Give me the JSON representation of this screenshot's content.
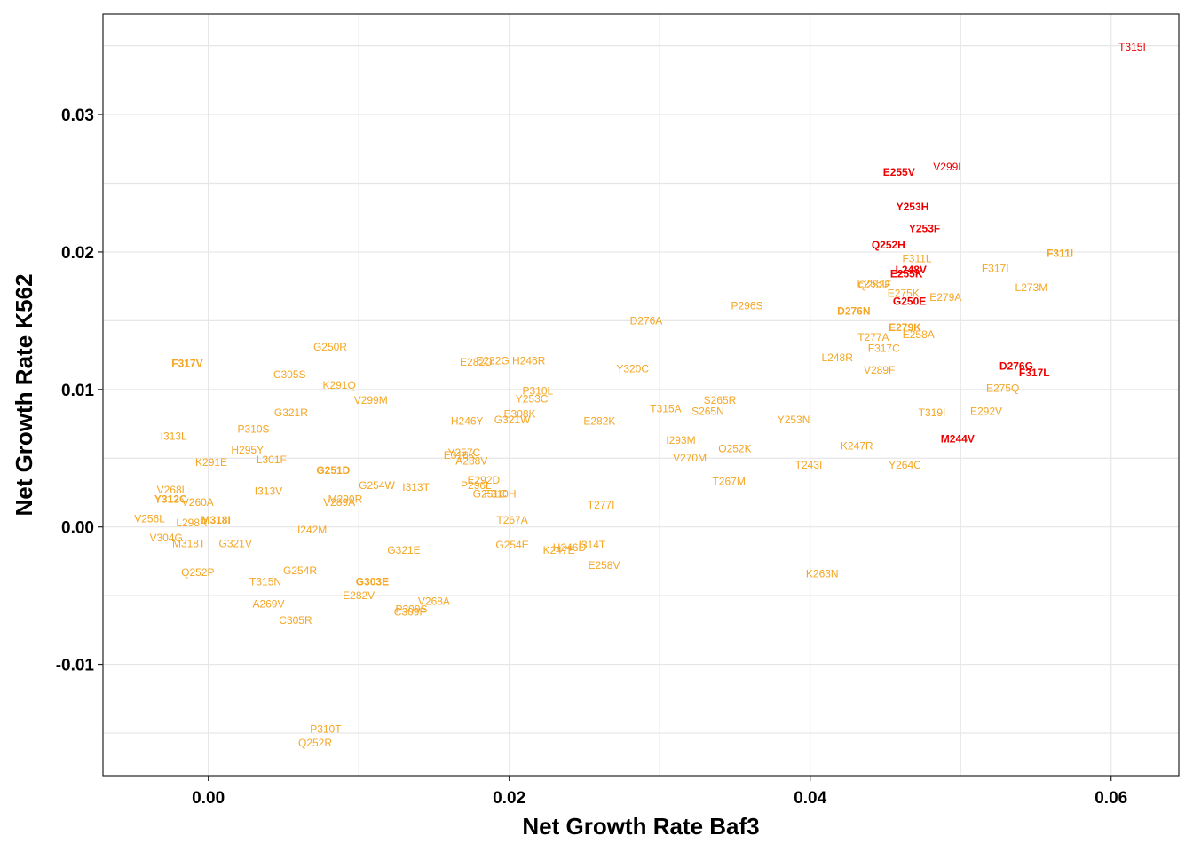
{
  "chart_data": {
    "type": "scatter",
    "xlabel": "Net Growth Rate Baf3",
    "ylabel": "Net Growth Rate K562",
    "xlim": [
      -0.007,
      0.0645
    ],
    "ylim": [
      -0.0181,
      0.0373
    ],
    "x_ticks": [
      0.0,
      0.02,
      0.04,
      0.06
    ],
    "x_tick_labels": [
      "0.00",
      "0.02",
      "0.04",
      "0.06"
    ],
    "y_ticks": [
      -0.01,
      0.0,
      0.01,
      0.02,
      0.03
    ],
    "y_tick_labels": [
      "-0.01",
      "0.00",
      "0.01",
      "0.02",
      "0.03"
    ],
    "grid": true,
    "colors": {
      "resistant": "#ee0000",
      "other": "#f5a623"
    },
    "points": [
      {
        "label": "T315I",
        "x": 0.0614,
        "y": 0.0349,
        "group": "resistant"
      },
      {
        "label": "V299L",
        "x": 0.0492,
        "y": 0.0262,
        "group": "resistant"
      },
      {
        "label": "E255V",
        "x": 0.0459,
        "y": 0.0258,
        "group": "resistant",
        "bold": true
      },
      {
        "label": "Y253H",
        "x": 0.0468,
        "y": 0.0233,
        "group": "resistant",
        "bold": true
      },
      {
        "label": "Y253F",
        "x": 0.0476,
        "y": 0.0217,
        "group": "resistant",
        "bold": true
      },
      {
        "label": "Q252H",
        "x": 0.0452,
        "y": 0.0205,
        "group": "resistant",
        "bold": true
      },
      {
        "label": "F311L",
        "x": 0.0471,
        "y": 0.0195,
        "group": "other"
      },
      {
        "label": "L248V",
        "x": 0.0467,
        "y": 0.0187,
        "group": "resistant",
        "bold": true
      },
      {
        "label": "E255K",
        "x": 0.0464,
        "y": 0.0184,
        "group": "resistant",
        "bold": true
      },
      {
        "label": "G250E",
        "x": 0.0466,
        "y": 0.0164,
        "group": "resistant",
        "bold": true
      },
      {
        "label": "D276G",
        "x": 0.0537,
        "y": 0.0117,
        "group": "resistant",
        "bold": true
      },
      {
        "label": "F317L",
        "x": 0.0549,
        "y": 0.0112,
        "group": "resistant",
        "bold": true
      },
      {
        "label": "M244V",
        "x": 0.0498,
        "y": 0.0064,
        "group": "resistant",
        "bold": true
      },
      {
        "label": "F311I",
        "x": 0.0566,
        "y": 0.0199,
        "group": "other",
        "bold": true
      },
      {
        "label": "F317I",
        "x": 0.0523,
        "y": 0.0188,
        "group": "other"
      },
      {
        "label": "L273M",
        "x": 0.0547,
        "y": 0.0174,
        "group": "other"
      },
      {
        "label": "E255D",
        "x": 0.0442,
        "y": 0.0177,
        "group": "other"
      },
      {
        "label": "Q252E",
        "x": 0.0443,
        "y": 0.0176,
        "group": "other"
      },
      {
        "label": "E275K",
        "x": 0.0462,
        "y": 0.017,
        "group": "other"
      },
      {
        "label": "E279A",
        "x": 0.049,
        "y": 0.0167,
        "group": "other"
      },
      {
        "label": "D276N",
        "x": 0.0429,
        "y": 0.0157,
        "group": "other",
        "bold": true
      },
      {
        "label": "E279K",
        "x": 0.0463,
        "y": 0.0145,
        "group": "other",
        "bold": true
      },
      {
        "label": "T277A",
        "x": 0.0442,
        "y": 0.0138,
        "group": "other"
      },
      {
        "label": "E258A",
        "x": 0.0472,
        "y": 0.014,
        "group": "other"
      },
      {
        "label": "F317C",
        "x": 0.0449,
        "y": 0.013,
        "group": "other"
      },
      {
        "label": "L248R",
        "x": 0.0418,
        "y": 0.0123,
        "group": "other"
      },
      {
        "label": "V289F",
        "x": 0.0446,
        "y": 0.0114,
        "group": "other"
      },
      {
        "label": "E275Q",
        "x": 0.0528,
        "y": 0.0101,
        "group": "other"
      },
      {
        "label": "T319I",
        "x": 0.0481,
        "y": 0.0083,
        "group": "other"
      },
      {
        "label": "E292V",
        "x": 0.0517,
        "y": 0.0084,
        "group": "other"
      },
      {
        "label": "K247R",
        "x": 0.0431,
        "y": 0.0059,
        "group": "other"
      },
      {
        "label": "Y264C",
        "x": 0.0463,
        "y": 0.0045,
        "group": "other"
      },
      {
        "label": "P296S",
        "x": 0.0358,
        "y": 0.0161,
        "group": "other"
      },
      {
        "label": "D276A",
        "x": 0.0291,
        "y": 0.015,
        "group": "other"
      },
      {
        "label": "Y320C",
        "x": 0.0282,
        "y": 0.0115,
        "group": "other"
      },
      {
        "label": "S265R",
        "x": 0.034,
        "y": 0.0092,
        "group": "other"
      },
      {
        "label": "T315A",
        "x": 0.0304,
        "y": 0.0086,
        "group": "other"
      },
      {
        "label": "S265N",
        "x": 0.0332,
        "y": 0.0084,
        "group": "other"
      },
      {
        "label": "Y253N",
        "x": 0.0389,
        "y": 0.0078,
        "group": "other"
      },
      {
        "label": "I293M",
        "x": 0.0314,
        "y": 0.0063,
        "group": "other"
      },
      {
        "label": "Q252K",
        "x": 0.035,
        "y": 0.0057,
        "group": "other"
      },
      {
        "label": "V270M",
        "x": 0.032,
        "y": 0.005,
        "group": "other"
      },
      {
        "label": "T243I",
        "x": 0.0399,
        "y": 0.0045,
        "group": "other"
      },
      {
        "label": "T267M",
        "x": 0.0346,
        "y": 0.0033,
        "group": "other"
      },
      {
        "label": "K263N",
        "x": 0.0408,
        "y": -0.0034,
        "group": "other"
      },
      {
        "label": "H246R",
        "x": 0.0213,
        "y": 0.0121,
        "group": "other"
      },
      {
        "label": "E282G",
        "x": 0.0189,
        "y": 0.0121,
        "group": "other"
      },
      {
        "label": "E282D",
        "x": 0.0178,
        "y": 0.012,
        "group": "other"
      },
      {
        "label": "P310L",
        "x": 0.0219,
        "y": 0.0099,
        "group": "other"
      },
      {
        "label": "Y253C",
        "x": 0.0215,
        "y": 0.0093,
        "group": "other"
      },
      {
        "label": "E308K",
        "x": 0.0207,
        "y": 0.0082,
        "group": "other"
      },
      {
        "label": "G321W",
        "x": 0.0202,
        "y": 0.0078,
        "group": "other"
      },
      {
        "label": "H246Y",
        "x": 0.0172,
        "y": 0.0077,
        "group": "other"
      },
      {
        "label": "E282K",
        "x": 0.026,
        "y": 0.0077,
        "group": "other"
      },
      {
        "label": "Y257C",
        "x": 0.017,
        "y": 0.0054,
        "group": "other"
      },
      {
        "label": "E316K",
        "x": 0.0167,
        "y": 0.0052,
        "group": "other"
      },
      {
        "label": "A288V",
        "x": 0.0175,
        "y": 0.0048,
        "group": "other"
      },
      {
        "label": "E292D",
        "x": 0.0183,
        "y": 0.0034,
        "group": "other"
      },
      {
        "label": "P296L",
        "x": 0.0178,
        "y": 0.003,
        "group": "other"
      },
      {
        "label": "G251C",
        "x": 0.0187,
        "y": 0.0024,
        "group": "other"
      },
      {
        "label": "F310H",
        "x": 0.0194,
        "y": 0.0024,
        "group": "other"
      },
      {
        "label": "T277I",
        "x": 0.0261,
        "y": 0.0016,
        "group": "other"
      },
      {
        "label": "T267A",
        "x": 0.0202,
        "y": 0.0005,
        "group": "other"
      },
      {
        "label": "G254E",
        "x": 0.0202,
        "y": -0.0013,
        "group": "other"
      },
      {
        "label": "I314T",
        "x": 0.0255,
        "y": -0.0013,
        "group": "other"
      },
      {
        "label": "H246D",
        "x": 0.024,
        "y": -0.0015,
        "group": "other"
      },
      {
        "label": "K247E",
        "x": 0.0233,
        "y": -0.0017,
        "group": "other"
      },
      {
        "label": "E258V",
        "x": 0.0263,
        "y": -0.0028,
        "group": "other"
      },
      {
        "label": "G250R",
        "x": 0.0081,
        "y": 0.0131,
        "group": "other"
      },
      {
        "label": "F317V",
        "x": -0.0014,
        "y": 0.0119,
        "group": "other",
        "bold": true
      },
      {
        "label": "C305S",
        "x": 0.0054,
        "y": 0.0111,
        "group": "other"
      },
      {
        "label": "K291Q",
        "x": 0.0087,
        "y": 0.0103,
        "group": "other"
      },
      {
        "label": "V299M",
        "x": 0.0108,
        "y": 0.0092,
        "group": "other"
      },
      {
        "label": "G321R",
        "x": 0.0055,
        "y": 0.0083,
        "group": "other"
      },
      {
        "label": "P310S",
        "x": 0.003,
        "y": 0.0071,
        "group": "other"
      },
      {
        "label": "I313L",
        "x": -0.0023,
        "y": 0.0066,
        "group": "other"
      },
      {
        "label": "H295Y",
        "x": 0.0026,
        "y": 0.0056,
        "group": "other"
      },
      {
        "label": "K291E",
        "x": 0.0002,
        "y": 0.0047,
        "group": "other"
      },
      {
        "label": "L301F",
        "x": 0.0042,
        "y": 0.0049,
        "group": "other"
      },
      {
        "label": "G251D",
        "x": 0.0083,
        "y": 0.0041,
        "group": "other",
        "bold": true
      },
      {
        "label": "G254W",
        "x": 0.0112,
        "y": 0.003,
        "group": "other"
      },
      {
        "label": "I313T",
        "x": 0.0138,
        "y": 0.0029,
        "group": "other"
      },
      {
        "label": "I313V",
        "x": 0.004,
        "y": 0.0026,
        "group": "other"
      },
      {
        "label": "V268L",
        "x": -0.0024,
        "y": 0.0027,
        "group": "other"
      },
      {
        "label": "Y312C",
        "x": -0.0025,
        "y": 0.002,
        "group": "other",
        "bold": true
      },
      {
        "label": "V260A",
        "x": -0.0007,
        "y": 0.0018,
        "group": "other"
      },
      {
        "label": "M290R",
        "x": 0.0091,
        "y": 0.002,
        "group": "other"
      },
      {
        "label": "V289A",
        "x": 0.0087,
        "y": 0.0018,
        "group": "other"
      },
      {
        "label": "V256L",
        "x": -0.0039,
        "y": 0.0006,
        "group": "other"
      },
      {
        "label": "L298R",
        "x": -0.0011,
        "y": 0.0003,
        "group": "other"
      },
      {
        "label": "M318I",
        "x": 0.0005,
        "y": 0.0005,
        "group": "other",
        "bold": true
      },
      {
        "label": "I242M",
        "x": 0.0069,
        "y": -0.0002,
        "group": "other"
      },
      {
        "label": "V304G",
        "x": -0.0028,
        "y": -0.0008,
        "group": "other"
      },
      {
        "label": "M318T",
        "x": -0.0013,
        "y": -0.0012,
        "group": "other"
      },
      {
        "label": "G321V",
        "x": 0.0018,
        "y": -0.0012,
        "group": "other"
      },
      {
        "label": "G321E",
        "x": 0.013,
        "y": -0.0017,
        "group": "other"
      },
      {
        "label": "Q252P",
        "x": -0.0007,
        "y": -0.0033,
        "group": "other"
      },
      {
        "label": "G254R",
        "x": 0.0061,
        "y": -0.0032,
        "group": "other"
      },
      {
        "label": "T315N",
        "x": 0.0038,
        "y": -0.004,
        "group": "other"
      },
      {
        "label": "G303E",
        "x": 0.0109,
        "y": -0.004,
        "group": "other",
        "bold": true
      },
      {
        "label": "E282V",
        "x": 0.01,
        "y": -0.005,
        "group": "other"
      },
      {
        "label": "V268A",
        "x": 0.015,
        "y": -0.0054,
        "group": "other"
      },
      {
        "label": "A269V",
        "x": 0.004,
        "y": -0.0056,
        "group": "other"
      },
      {
        "label": "P309S",
        "x": 0.0135,
        "y": -0.006,
        "group": "other"
      },
      {
        "label": "C309F",
        "x": 0.0134,
        "y": -0.0062,
        "group": "other"
      },
      {
        "label": "C305R",
        "x": 0.0058,
        "y": -0.0068,
        "group": "other"
      },
      {
        "label": "P310T",
        "x": 0.0078,
        "y": -0.0147,
        "group": "other"
      },
      {
        "label": "Q252R",
        "x": 0.0071,
        "y": -0.0157,
        "group": "other"
      }
    ]
  }
}
